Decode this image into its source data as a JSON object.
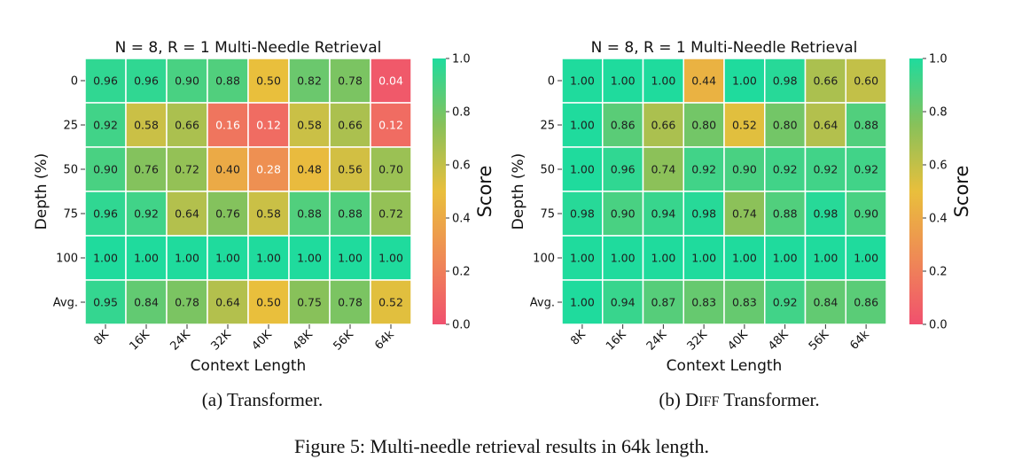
{
  "figure_caption": "Figure 5: Multi-needle retrieval results in 64k length.",
  "colorscale": {
    "label": "Score",
    "ticks": [
      "0.0",
      "0.2",
      "0.4",
      "0.6",
      "0.8",
      "1.0"
    ],
    "stops": [
      {
        "v": 0.0,
        "color": "#f0506e"
      },
      {
        "v": 0.25,
        "color": "#ef8a55"
      },
      {
        "v": 0.5,
        "color": "#e9bf3c"
      },
      {
        "v": 0.75,
        "color": "#88c15a"
      },
      {
        "v": 1.0,
        "color": "#1fdb9d"
      }
    ]
  },
  "chart_data": [
    {
      "type": "heatmap",
      "title": "N = 8, R = 1 Multi-Needle Retrieval",
      "subcaption_prefix": "(a)",
      "subcaption_model": "Transformer.",
      "xlabel": "Context Length",
      "ylabel": "Depth (%)",
      "x_categories": [
        "8K",
        "16K",
        "24K",
        "32K",
        "40K",
        "48K",
        "56K",
        "64k"
      ],
      "y_categories": [
        "0",
        "25",
        "50",
        "75",
        "100",
        "Avg."
      ],
      "values": [
        [
          0.96,
          0.96,
          0.9,
          0.88,
          0.5,
          0.82,
          0.78,
          0.04
        ],
        [
          0.92,
          0.58,
          0.66,
          0.16,
          0.12,
          0.58,
          0.66,
          0.12
        ],
        [
          0.9,
          0.76,
          0.72,
          0.4,
          0.28,
          0.48,
          0.56,
          0.7
        ],
        [
          0.96,
          0.92,
          0.64,
          0.76,
          0.58,
          0.88,
          0.88,
          0.72
        ],
        [
          1.0,
          1.0,
          1.0,
          1.0,
          1.0,
          1.0,
          1.0,
          1.0
        ],
        [
          0.95,
          0.84,
          0.78,
          0.64,
          0.5,
          0.75,
          0.78,
          0.52
        ]
      ],
      "zlim": [
        0,
        1
      ]
    },
    {
      "type": "heatmap",
      "title": "N = 8, R = 1 Multi-Needle Retrieval",
      "subcaption_prefix": "(b)",
      "subcaption_model": "DIFF Transformer.",
      "xlabel": "Context Length",
      "ylabel": "Depth (%)",
      "x_categories": [
        "8K",
        "16K",
        "24K",
        "32K",
        "40K",
        "48K",
        "56K",
        "64k"
      ],
      "y_categories": [
        "0",
        "25",
        "50",
        "75",
        "100",
        "Avg."
      ],
      "values": [
        [
          1.0,
          1.0,
          1.0,
          0.44,
          1.0,
          0.98,
          0.66,
          0.6
        ],
        [
          1.0,
          0.86,
          0.66,
          0.8,
          0.52,
          0.8,
          0.64,
          0.88
        ],
        [
          1.0,
          0.96,
          0.74,
          0.92,
          0.9,
          0.92,
          0.92,
          0.92
        ],
        [
          0.98,
          0.9,
          0.94,
          0.98,
          0.74,
          0.88,
          0.98,
          0.9
        ],
        [
          1.0,
          1.0,
          1.0,
          1.0,
          1.0,
          1.0,
          1.0,
          1.0
        ],
        [
          1.0,
          0.94,
          0.87,
          0.83,
          0.83,
          0.92,
          0.84,
          0.86
        ]
      ],
      "zlim": [
        0,
        1
      ]
    }
  ]
}
